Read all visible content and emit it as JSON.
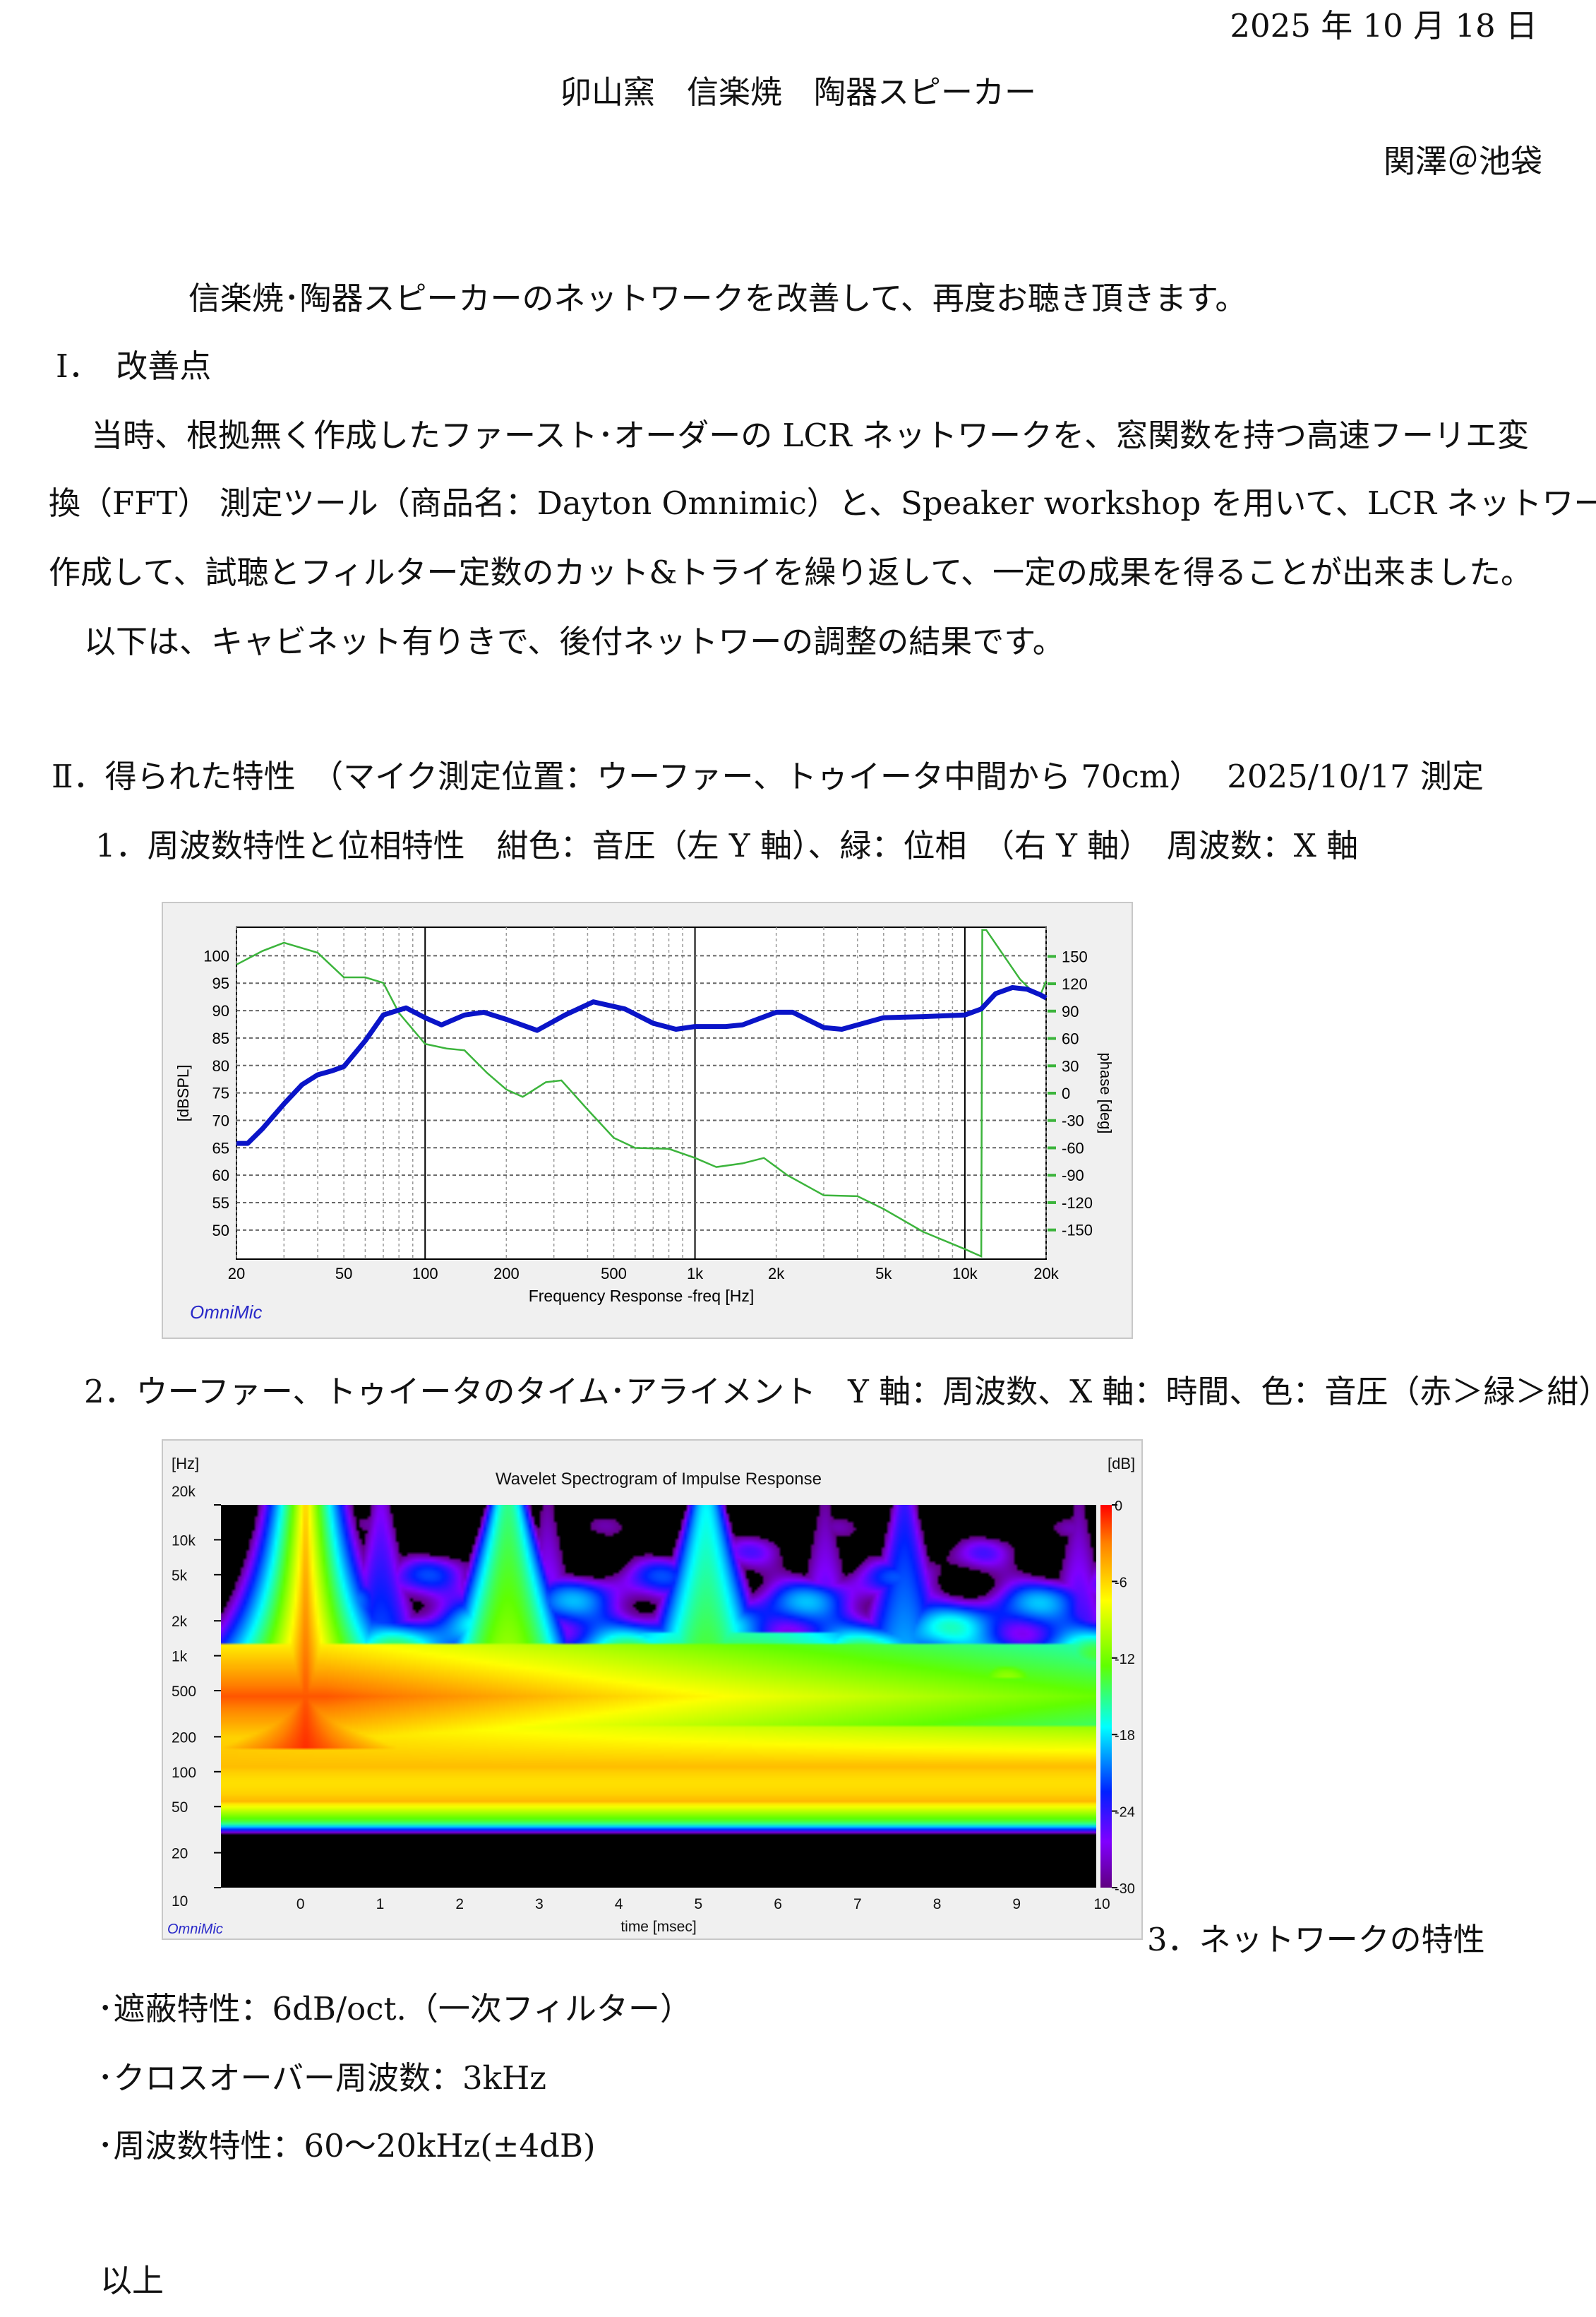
{
  "header": {
    "date": "2025 年 10 月 18 日",
    "title": "卯山窯　信楽焼　陶器スピーカー",
    "author": "関澤＠池袋"
  },
  "intro": "信楽焼･陶器スピーカーのネットワークを改善して、再度お聴き頂きます。",
  "section1": {
    "heading": "Ⅰ．　改善点",
    "lines": [
      "当時、根拠無く作成したファースト･オーダーの LCR ネットワークを、窓関数を持つ高速フーリエ変",
      "換（FFT）  測定ツール（商品名：Dayton Omnimic）と、Speaker workshop を用いて、LCR ネットワークを",
      "作成して、試聴とフィルター定数のカット&トライを繰り返して、一定の成果を得ることが出来ました。",
      "以下は、キャビネット有りきで、後付ネットワーの調整の結果です。"
    ]
  },
  "section2": {
    "heading": "Ⅱ．得られた特性　（マイク測定位置：ウーファー、トゥイータ中間から 70cm）　 2025/10/17 測定",
    "item1": "1．周波数特性と位相特性　紺色：音圧（左 Y 軸）、緑：位相　（右 Y 軸）　周波数：X 軸",
    "item2": "2．ウーファー、トゥイータのタイム･アライメント　Y 軸：周波数、X 軸：時間、色：音圧（赤＞緑＞紺）",
    "item3": "3．ネットワークの特性",
    "bullets": [
      "･遮蔽特性：6dB/oct.（一次フィルター）",
      "･クロスオーバー周波数：3kHz",
      "･周波数特性：60～20kHz(±4dB)"
    ]
  },
  "closing": "以上",
  "chart_data": [
    {
      "type": "line",
      "xlabel": "Frequency Response -freq [Hz]",
      "ylabel": "[dBSPL]",
      "y2label": "phase [deg]",
      "xscale": "log",
      "xlim": [
        20,
        20000
      ],
      "ylim": [
        44.7,
        105.2
      ],
      "y2lim": [
        -182,
        182
      ],
      "xticks": [
        "20",
        "50",
        "100",
        "200",
        "500",
        "1k",
        "2k",
        "5k",
        "10k",
        "20k"
      ],
      "xtick_values": [
        20,
        50,
        100,
        200,
        500,
        1000,
        2000,
        5000,
        10000,
        20000
      ],
      "yticks": [
        "100",
        "95",
        "90",
        "85",
        "80",
        "75",
        "70",
        "65",
        "60",
        "55",
        "50"
      ],
      "y2ticks": [
        "150",
        "120",
        "90",
        "60",
        "30",
        "0",
        "-30",
        "-60",
        "-90",
        "-120",
        "-150"
      ],
      "grid": true,
      "watermark": "OmniMic",
      "colors": {
        "spl": "#0a14c8",
        "phase": "#3cb43c",
        "bg": "#f0f0f0"
      },
      "series": [
        {
          "axis": "left",
          "points": [
            [
              20,
              65.8
            ],
            [
              22,
              65.8
            ],
            [
              25,
              68.5
            ],
            [
              30,
              73
            ],
            [
              35,
              76.5
            ],
            [
              40,
              78.3
            ],
            [
              45,
              79
            ],
            [
              50,
              79.8
            ],
            [
              60,
              84.5
            ],
            [
              70,
              89.2
            ],
            [
              85,
              90.5
            ],
            [
              100,
              88.7
            ],
            [
              115,
              87.4
            ],
            [
              140,
              89.2
            ],
            [
              165,
              89.7
            ],
            [
              200,
              88.4
            ],
            [
              260,
              86.4
            ],
            [
              330,
              89.2
            ],
            [
              420,
              91.6
            ],
            [
              550,
              90.3
            ],
            [
              700,
              87.7
            ],
            [
              850,
              86.6
            ],
            [
              1000,
              87.1
            ],
            [
              1300,
              87.1
            ],
            [
              1500,
              87.4
            ],
            [
              2000,
              89.7
            ],
            [
              2300,
              89.7
            ],
            [
              3000,
              86.9
            ],
            [
              3500,
              86.6
            ],
            [
              5000,
              88.7
            ],
            [
              7000,
              88.9
            ],
            [
              10000,
              89.2
            ],
            [
              11500,
              90.3
            ],
            [
              13000,
              93.1
            ],
            [
              15000,
              94.2
            ],
            [
              17000,
              93.9
            ],
            [
              19000,
              92.9
            ],
            [
              20000,
              92.3
            ]
          ]
        },
        {
          "axis": "right",
          "points": [
            [
              20,
              141
            ],
            [
              25,
              156
            ],
            [
              30,
              165
            ],
            [
              40,
              154
            ],
            [
              50,
              127
            ],
            [
              60,
              127
            ],
            [
              70,
              121
            ],
            [
              80,
              88
            ],
            [
              100,
              54
            ],
            [
              120,
              49
            ],
            [
              140,
              47
            ],
            [
              170,
              22
            ],
            [
              200,
              4
            ],
            [
              230,
              -4
            ],
            [
              280,
              12
            ],
            [
              320,
              14
            ],
            [
              400,
              -18
            ],
            [
              500,
              -49
            ],
            [
              600,
              -60
            ],
            [
              800,
              -61
            ],
            [
              1000,
              -71
            ],
            [
              1200,
              -81
            ],
            [
              1500,
              -77
            ],
            [
              1800,
              -71
            ],
            [
              2200,
              -90
            ],
            [
              3000,
              -112
            ],
            [
              4000,
              -113
            ],
            [
              5000,
              -127
            ],
            [
              7000,
              -152
            ],
            [
              10000,
              -171
            ],
            [
              11500,
              -179
            ],
            [
              11600,
              179
            ],
            [
              12000,
              179
            ],
            [
              14000,
              150
            ],
            [
              16000,
              125
            ],
            [
              18000,
              110
            ],
            [
              19000,
              107
            ],
            [
              20000,
              123
            ]
          ]
        }
      ]
    },
    {
      "type": "heatmap",
      "title": "Wavelet Spectrogram of Impulse Response",
      "xlabel": "time [msec]",
      "ylabel": "[Hz]",
      "colorbar_label": "[dB]",
      "xlim": [
        -1,
        10
      ],
      "ylim": [
        10,
        20000
      ],
      "yscale": "log",
      "xticks": [
        "0",
        "1",
        "2",
        "3",
        "4",
        "5",
        "6",
        "7",
        "8",
        "9",
        "10"
      ],
      "yticks": [
        "20k",
        "10k",
        "5k",
        "2k",
        "1k",
        "500",
        "200",
        "100",
        "50",
        "20",
        "10"
      ],
      "ytick_values": [
        20000,
        10000,
        5000,
        2000,
        1000,
        500,
        200,
        100,
        50,
        20,
        10
      ],
      "colorbar_ticks": [
        "0",
        "-6",
        "-12",
        "-18",
        "-24",
        "-30"
      ],
      "colorbar_range": [
        -30,
        0
      ],
      "watermark": "OmniMic"
    }
  ]
}
